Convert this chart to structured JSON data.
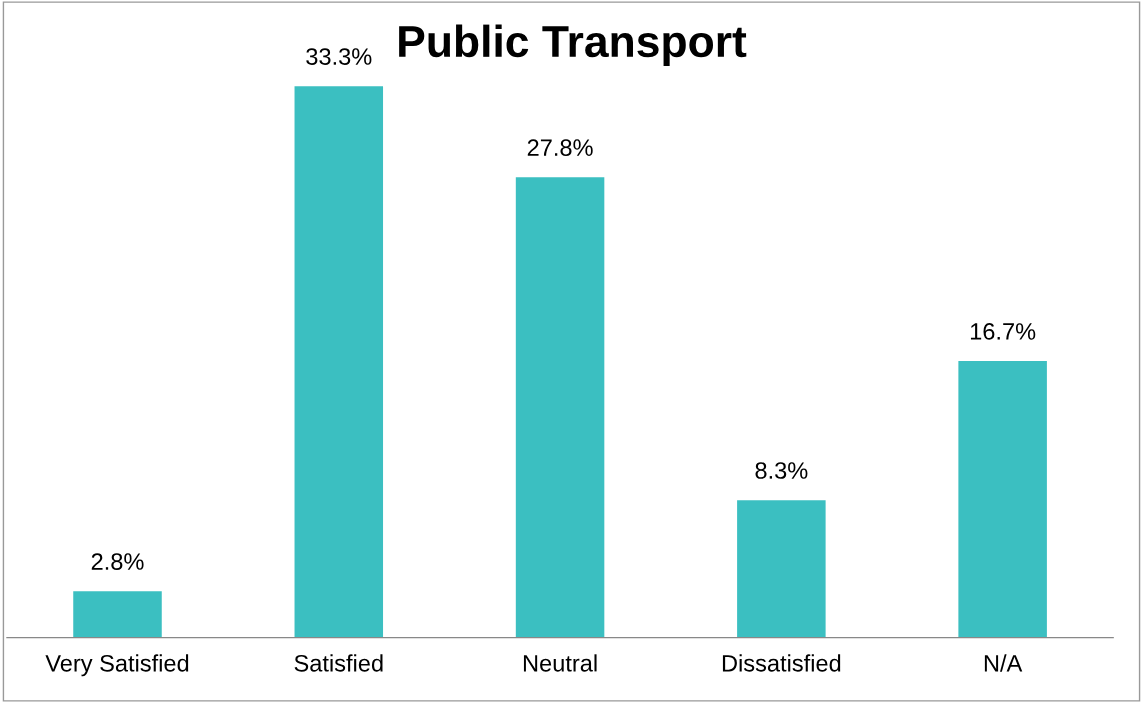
{
  "chart_data": {
    "type": "bar",
    "title": "Public Transport",
    "categories": [
      "Very Satisfied",
      "Satisfied",
      "Neutral",
      "Dissatisfied",
      "N/A"
    ],
    "values": [
      2.8,
      33.3,
      27.8,
      8.3,
      16.7
    ],
    "value_labels": [
      "2.8%",
      "33.3%",
      "27.8%",
      "8.3%",
      "16.7%"
    ],
    "color": "#3bbfc1",
    "grid": false,
    "legend": false
  }
}
